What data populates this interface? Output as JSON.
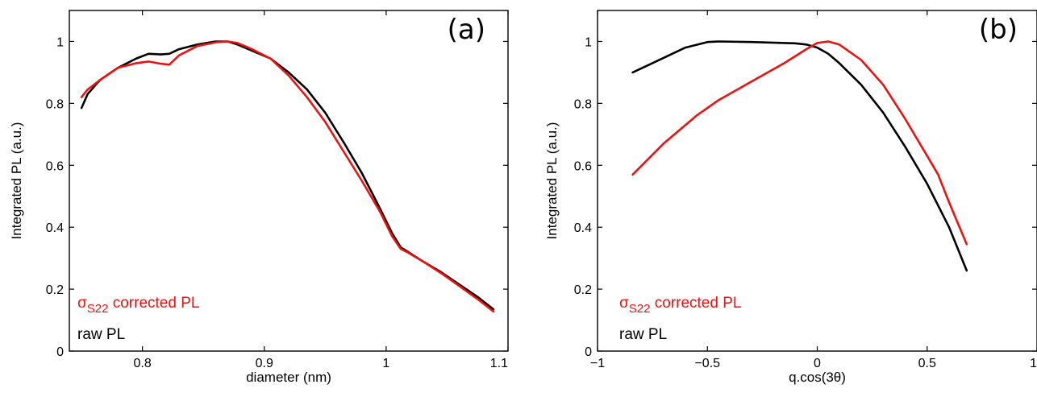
{
  "chart_data": [
    {
      "type": "line",
      "panel_label": "(a)",
      "xlabel": "diameter (nm)",
      "ylabel": "Integrated PL (a.u.)",
      "xlim": [
        0.74,
        1.1
      ],
      "ylim": [
        0,
        1.1
      ],
      "xticks": [
        0.8,
        0.9,
        1,
        1.1
      ],
      "xtick_labels": [
        "0.8",
        "0.9",
        "1",
        "1.1"
      ],
      "yticks": [
        0,
        0.2,
        0.4,
        0.6,
        0.8,
        1
      ],
      "ytick_labels": [
        "0",
        "0.2",
        "0.4",
        "0.6",
        "0.8",
        "1"
      ],
      "legend": {
        "placement": "bottom-left",
        "corrected": {
          "symbol": "σ",
          "subscript": "S22",
          "text": " corrected PL",
          "color": "#ee1111"
        },
        "raw": {
          "text": "raw PL",
          "color": "#000000"
        }
      },
      "series": [
        {
          "key": "raw",
          "color": "#000000",
          "x": [
            0.75,
            0.755,
            0.765,
            0.78,
            0.795,
            0.805,
            0.815,
            0.822,
            0.83,
            0.845,
            0.86,
            0.87,
            0.878,
            0.89,
            0.905,
            0.92,
            0.935,
            0.95,
            0.965,
            0.98,
            0.995,
            1.005,
            1.012,
            1.018,
            1.03,
            1.045,
            1.06,
            1.075,
            1.088
          ],
          "y": [
            0.785,
            0.83,
            0.875,
            0.915,
            0.945,
            0.96,
            0.958,
            0.96,
            0.975,
            0.99,
            1.0,
            1.0,
            0.99,
            0.97,
            0.945,
            0.9,
            0.845,
            0.77,
            0.675,
            0.575,
            0.46,
            0.38,
            0.335,
            0.32,
            0.29,
            0.255,
            0.215,
            0.175,
            0.135
          ]
        },
        {
          "key": "corrected",
          "color": "#ee1111",
          "x": [
            0.75,
            0.755,
            0.765,
            0.78,
            0.795,
            0.805,
            0.815,
            0.822,
            0.83,
            0.845,
            0.86,
            0.87,
            0.878,
            0.89,
            0.905,
            0.92,
            0.935,
            0.95,
            0.965,
            0.98,
            0.995,
            1.005,
            1.012,
            1.018,
            1.03,
            1.045,
            1.06,
            1.075,
            1.088
          ],
          "y": [
            0.82,
            0.845,
            0.875,
            0.915,
            0.93,
            0.935,
            0.928,
            0.925,
            0.955,
            0.985,
            0.997,
            1.0,
            0.995,
            0.975,
            0.945,
            0.89,
            0.82,
            0.74,
            0.645,
            0.55,
            0.45,
            0.37,
            0.33,
            0.318,
            0.29,
            0.252,
            0.21,
            0.168,
            0.128
          ]
        }
      ]
    },
    {
      "type": "line",
      "panel_label": "(b)",
      "xlabel": "q.cos(3θ)",
      "ylabel": "Integrated PL (a.u.)",
      "xlim": [
        -1,
        1
      ],
      "ylim": [
        0,
        1.1
      ],
      "xticks": [
        -1,
        -0.5,
        0,
        0.5,
        1
      ],
      "xtick_labels": [
        "−1",
        "−0.5",
        "0",
        "0.5",
        "1"
      ],
      "yticks": [
        0,
        0.2,
        0.4,
        0.6,
        0.8,
        1
      ],
      "ytick_labels": [
        "0",
        "0.2",
        "0.4",
        "0.6",
        "0.8",
        "1"
      ],
      "legend": {
        "placement": "bottom-left",
        "corrected": {
          "symbol": "σ",
          "subscript": "S22",
          "text": " corrected PL",
          "color": "#ee1111"
        },
        "raw": {
          "text": "raw PL",
          "color": "#000000"
        }
      },
      "series": [
        {
          "key": "raw",
          "color": "#000000",
          "x": [
            -0.84,
            -0.75,
            -0.6,
            -0.5,
            -0.45,
            -0.3,
            -0.1,
            -0.05,
            0.0,
            0.05,
            0.1,
            0.2,
            0.3,
            0.4,
            0.5,
            0.6,
            0.68
          ],
          "y": [
            0.9,
            0.93,
            0.98,
            0.998,
            1.0,
            0.998,
            0.994,
            0.99,
            0.98,
            0.96,
            0.93,
            0.86,
            0.77,
            0.66,
            0.54,
            0.4,
            0.26
          ]
        },
        {
          "key": "corrected",
          "color": "#ee1111",
          "x": [
            -0.84,
            -0.7,
            -0.55,
            -0.45,
            -0.3,
            -0.15,
            -0.05,
            0.0,
            0.05,
            0.1,
            0.2,
            0.3,
            0.4,
            0.5,
            0.55,
            0.6,
            0.68
          ],
          "y": [
            0.57,
            0.67,
            0.76,
            0.81,
            0.87,
            0.93,
            0.975,
            0.995,
            1.0,
            0.99,
            0.94,
            0.86,
            0.75,
            0.63,
            0.57,
            0.48,
            0.345
          ]
        }
      ]
    }
  ]
}
